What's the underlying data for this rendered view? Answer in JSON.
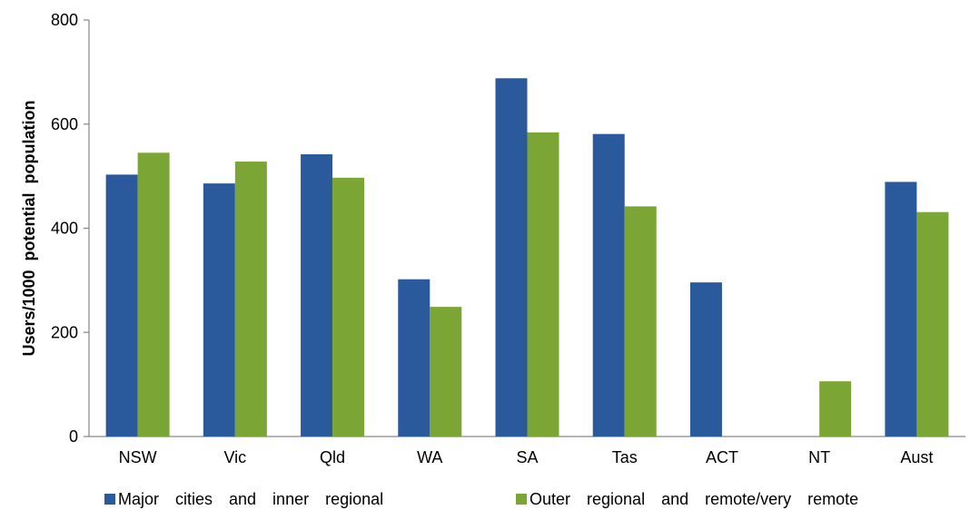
{
  "chart_data": {
    "type": "bar",
    "title": "",
    "xlabel": "",
    "ylabel": "Users/1000  potential  population",
    "ylim": [
      0,
      800
    ],
    "yticks": [
      0,
      200,
      400,
      600,
      800
    ],
    "grid": false,
    "legend_position": "bottom",
    "categories": [
      "NSW",
      "Vic",
      "Qld",
      "WA",
      "SA",
      "Tas",
      "ACT",
      "NT",
      "Aust"
    ],
    "series": [
      {
        "name": "Major  cities  and  inner  regional",
        "color": "#2A5A9B",
        "values": [
          503,
          486,
          542,
          302,
          688,
          581,
          296,
          null,
          489
        ]
      },
      {
        "name": "Outer  regional  and  remote/very  remote",
        "color": "#7BA534",
        "values": [
          545,
          528,
          497,
          249,
          584,
          442,
          null,
          106,
          431
        ]
      }
    ]
  }
}
